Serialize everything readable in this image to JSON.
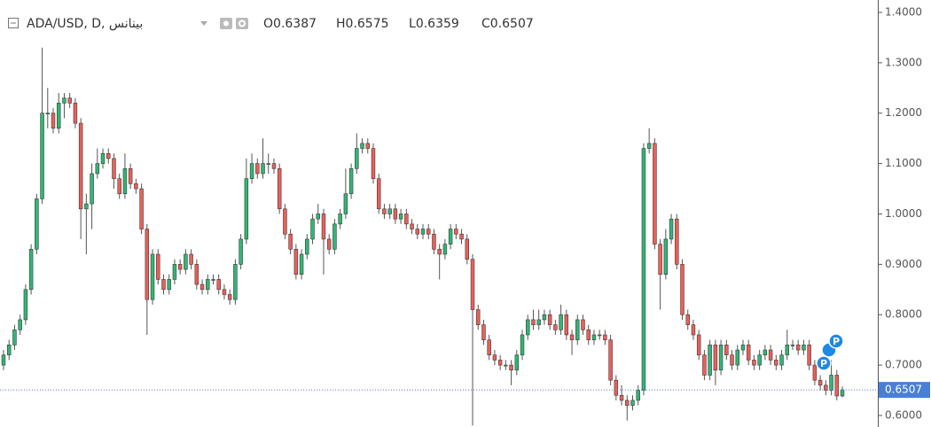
{
  "chart_data": {
    "type": "candlestick",
    "title": "ADA/USD, D, بينانس",
    "ohlc_labels": [
      "O",
      "H",
      "L",
      "C"
    ],
    "event_markers": [
      "P",
      "P"
    ],
    "up_color": "#2fb775",
    "down_color": "#ec5f59",
    "price_line_color": "#4a7fd6",
    "ylim": [
      0.5771,
      1.4246
    ],
    "yticks": [
      {
        "value": 0.6,
        "label": "0.6000"
      },
      {
        "value": 0.7,
        "label": "0.7000"
      },
      {
        "value": 0.8,
        "label": "0.8000"
      },
      {
        "value": 0.9,
        "label": "0.9000"
      },
      {
        "value": 1.0,
        "label": "1.0000"
      },
      {
        "value": 1.1,
        "label": "1.1000"
      },
      {
        "value": 1.2,
        "label": "1.2000"
      },
      {
        "value": 1.3,
        "label": "1.3000"
      },
      {
        "value": 1.4,
        "label": "1.4000"
      }
    ],
    "open": [
      0.7,
      0.72,
      0.74,
      0.77,
      0.79,
      0.85,
      0.93,
      1.03,
      1.2,
      1.2,
      1.17,
      1.22,
      1.23,
      1.22,
      1.18,
      1.01,
      1.02,
      1.08,
      1.1,
      1.12,
      1.11,
      1.07,
      1.04,
      1.09,
      1.06,
      1.05,
      0.97,
      0.83,
      0.92,
      0.87,
      0.85,
      0.87,
      0.9,
      0.89,
      0.92,
      0.9,
      0.86,
      0.85,
      0.87,
      0.87,
      0.85,
      0.84,
      0.83,
      0.9,
      0.95,
      1.07,
      1.1,
      1.08,
      1.1,
      1.1,
      1.09,
      1.01,
      0.96,
      0.93,
      0.88,
      0.92,
      0.95,
      0.99,
      1.0,
      0.95,
      0.93,
      0.98,
      1.0,
      1.04,
      1.09,
      1.13,
      1.14,
      1.13,
      1.07,
      1.01,
      1.0,
      1.01,
      0.99,
      1.0,
      0.98,
      0.97,
      0.96,
      0.97,
      0.96,
      0.93,
      0.92,
      0.94,
      0.97,
      0.96,
      0.95,
      0.91,
      0.81,
      0.78,
      0.75,
      0.72,
      0.71,
      0.7,
      0.7,
      0.69,
      0.72,
      0.76,
      0.79,
      0.78,
      0.79,
      0.8,
      0.78,
      0.77,
      0.8,
      0.76,
      0.75,
      0.79,
      0.77,
      0.75,
      0.76,
      0.76,
      0.75,
      0.67,
      0.64,
      0.63,
      0.62,
      0.63,
      0.65,
      1.13,
      1.14,
      0.94,
      0.88,
      0.95,
      0.99,
      0.9,
      0.8,
      0.78,
      0.76,
      0.72,
      0.68,
      0.74,
      0.69,
      0.74,
      0.72,
      0.7,
      0.73,
      0.74,
      0.71,
      0.7,
      0.72,
      0.73,
      0.71,
      0.7,
      0.72,
      0.74,
      0.74,
      0.73,
      0.74,
      0.7,
      0.67,
      0.66,
      0.65,
      0.68,
      0.6387
    ],
    "high": [
      0.73,
      0.75,
      0.78,
      0.8,
      0.86,
      0.94,
      1.04,
      1.33,
      1.25,
      1.21,
      1.24,
      1.24,
      1.24,
      1.23,
      1.19,
      1.04,
      1.1,
      1.13,
      1.13,
      1.13,
      1.12,
      1.08,
      1.12,
      1.1,
      1.07,
      1.06,
      0.98,
      0.93,
      0.93,
      0.88,
      0.88,
      0.91,
      0.91,
      0.93,
      0.93,
      0.91,
      0.87,
      0.88,
      0.88,
      0.88,
      0.86,
      0.85,
      0.91,
      0.96,
      1.11,
      1.12,
      1.11,
      1.15,
      1.12,
      1.11,
      1.1,
      1.02,
      0.97,
      0.94,
      0.93,
      0.96,
      1.0,
      1.02,
      1.01,
      0.96,
      0.99,
      1.01,
      1.09,
      1.1,
      1.16,
      1.15,
      1.15,
      1.14,
      1.08,
      1.02,
      1.02,
      1.02,
      1.01,
      1.01,
      0.99,
      0.98,
      0.98,
      0.98,
      0.97,
      0.94,
      0.95,
      0.98,
      0.98,
      0.97,
      0.96,
      0.92,
      0.82,
      0.79,
      0.76,
      0.73,
      0.72,
      0.71,
      0.71,
      0.73,
      0.77,
      0.8,
      0.81,
      0.81,
      0.81,
      0.81,
      0.79,
      0.82,
      0.81,
      0.77,
      0.8,
      0.8,
      0.78,
      0.77,
      0.77,
      0.77,
      0.76,
      0.68,
      0.66,
      0.64,
      0.64,
      0.66,
      1.14,
      1.17,
      1.15,
      0.95,
      0.97,
      1.0,
      1.0,
      0.91,
      0.81,
      0.79,
      0.77,
      0.73,
      0.75,
      0.75,
      0.75,
      0.75,
      0.73,
      0.74,
      0.75,
      0.75,
      0.72,
      0.73,
      0.74,
      0.74,
      0.72,
      0.73,
      0.77,
      0.75,
      0.75,
      0.75,
      0.75,
      0.71,
      0.68,
      0.67,
      0.71,
      0.69,
      0.6575
    ],
    "low": [
      0.69,
      0.71,
      0.73,
      0.76,
      0.78,
      0.84,
      0.92,
      1.02,
      1.17,
      1.16,
      1.16,
      1.19,
      1.21,
      1.17,
      0.95,
      0.92,
      0.97,
      1.07,
      1.09,
      1.1,
      1.05,
      1.03,
      1.03,
      1.05,
      1.04,
      0.96,
      0.76,
      0.82,
      0.86,
      0.84,
      0.84,
      0.86,
      0.88,
      0.88,
      0.89,
      0.85,
      0.84,
      0.84,
      0.86,
      0.84,
      0.83,
      0.82,
      0.82,
      0.89,
      0.94,
      1.06,
      1.07,
      1.07,
      1.08,
      1.08,
      1.0,
      0.95,
      0.92,
      0.87,
      0.87,
      0.91,
      0.94,
      0.98,
      0.88,
      0.92,
      0.92,
      0.97,
      0.99,
      1.03,
      1.08,
      1.12,
      1.12,
      1.06,
      1.0,
      0.99,
      0.99,
      0.98,
      0.98,
      0.97,
      0.96,
      0.95,
      0.95,
      0.95,
      0.92,
      0.87,
      0.91,
      0.93,
      0.95,
      0.94,
      0.9,
      0.58,
      0.77,
      0.74,
      0.71,
      0.7,
      0.69,
      0.69,
      0.66,
      0.68,
      0.71,
      0.75,
      0.77,
      0.77,
      0.78,
      0.77,
      0.76,
      0.76,
      0.75,
      0.72,
      0.74,
      0.76,
      0.74,
      0.74,
      0.75,
      0.74,
      0.66,
      0.63,
      0.62,
      0.59,
      0.61,
      0.62,
      0.64,
      1.12,
      0.93,
      0.81,
      0.87,
      0.94,
      0.89,
      0.79,
      0.77,
      0.75,
      0.71,
      0.67,
      0.67,
      0.66,
      0.68,
      0.71,
      0.69,
      0.69,
      0.72,
      0.7,
      0.69,
      0.69,
      0.71,
      0.7,
      0.69,
      0.69,
      0.71,
      0.73,
      0.72,
      0.72,
      0.69,
      0.66,
      0.65,
      0.64,
      0.64,
      0.63,
      0.6359
    ],
    "close": [
      0.72,
      0.74,
      0.77,
      0.79,
      0.85,
      0.93,
      1.03,
      1.2,
      1.2,
      1.17,
      1.22,
      1.23,
      1.22,
      1.18,
      1.01,
      1.02,
      1.08,
      1.1,
      1.12,
      1.11,
      1.07,
      1.04,
      1.09,
      1.06,
      1.05,
      0.97,
      0.83,
      0.92,
      0.87,
      0.85,
      0.87,
      0.9,
      0.89,
      0.92,
      0.9,
      0.86,
      0.85,
      0.87,
      0.87,
      0.85,
      0.84,
      0.83,
      0.9,
      0.95,
      1.07,
      1.1,
      1.08,
      1.1,
      1.1,
      1.09,
      1.01,
      0.96,
      0.93,
      0.88,
      0.92,
      0.95,
      0.99,
      1.0,
      0.95,
      0.93,
      0.98,
      1.0,
      1.04,
      1.09,
      1.13,
      1.14,
      1.13,
      1.07,
      1.01,
      1.0,
      1.01,
      0.99,
      1.0,
      0.98,
      0.97,
      0.96,
      0.97,
      0.96,
      0.93,
      0.92,
      0.94,
      0.97,
      0.96,
      0.95,
      0.91,
      0.81,
      0.78,
      0.75,
      0.72,
      0.71,
      0.7,
      0.7,
      0.69,
      0.72,
      0.76,
      0.79,
      0.78,
      0.79,
      0.8,
      0.78,
      0.77,
      0.8,
      0.76,
      0.75,
      0.79,
      0.77,
      0.75,
      0.76,
      0.76,
      0.75,
      0.67,
      0.64,
      0.63,
      0.62,
      0.63,
      0.65,
      1.13,
      1.14,
      0.94,
      0.88,
      0.95,
      0.99,
      0.9,
      0.8,
      0.78,
      0.76,
      0.72,
      0.68,
      0.74,
      0.69,
      0.74,
      0.72,
      0.7,
      0.73,
      0.74,
      0.71,
      0.7,
      0.72,
      0.73,
      0.71,
      0.7,
      0.72,
      0.74,
      0.74,
      0.73,
      0.74,
      0.7,
      0.67,
      0.66,
      0.65,
      0.68,
      0.6387,
      0.6507
    ]
  }
}
